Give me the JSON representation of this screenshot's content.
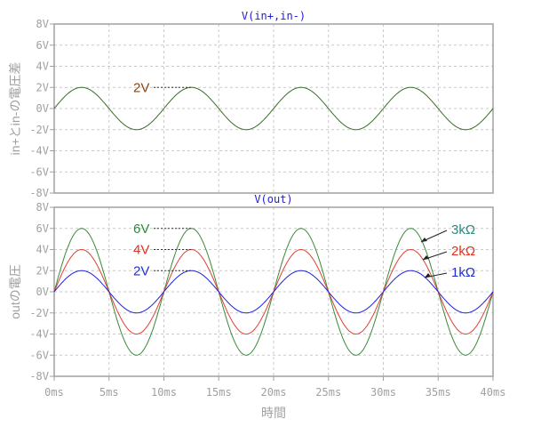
{
  "chart_data": [
    {
      "type": "line",
      "title": "V(in+,in-)",
      "ylabel": "in+とin-の電圧差",
      "xlabel": "",
      "xlim": [
        0,
        40
      ],
      "ylim": [
        -8,
        8
      ],
      "yticks": [
        "8V",
        "6V",
        "4V",
        "2V",
        "0V",
        "-2V",
        "-4V",
        "-6V",
        "-8V"
      ],
      "grid": true,
      "series": [
        {
          "name": "V(in+,in-)",
          "amplitude": 2,
          "period_ms": 10,
          "color": "#3a6e2a"
        }
      ],
      "annotations": [
        {
          "text": "2V",
          "color": "#8b4513",
          "at_ms": 12.5,
          "value": 2
        }
      ]
    },
    {
      "type": "line",
      "title": "V(out)",
      "ylabel": "outの電圧",
      "xlabel": "時間",
      "xlim": [
        0,
        40
      ],
      "ylim": [
        -8,
        8
      ],
      "yticks": [
        "8V",
        "6V",
        "4V",
        "2V",
        "0V",
        "-2V",
        "-4V",
        "-6V",
        "-8V"
      ],
      "xticks": [
        "0ms",
        "5ms",
        "10ms",
        "15ms",
        "20ms",
        "25ms",
        "30ms",
        "35ms",
        "40ms"
      ],
      "grid": true,
      "series": [
        {
          "name": "3kΩ",
          "amplitude": 6,
          "period_ms": 10,
          "color": "#3a8a3a",
          "label_color": "#2a8a80"
        },
        {
          "name": "2kΩ",
          "amplitude": 4,
          "period_ms": 10,
          "color": "#e04030",
          "label_color": "#e03020"
        },
        {
          "name": "1kΩ",
          "amplitude": 2,
          "period_ms": 10,
          "color": "#2020e0",
          "label_color": "#2030d0"
        }
      ],
      "annotations": [
        {
          "text": "6V",
          "color": "#2a8a3a",
          "at_ms": 12.5,
          "value": 6
        },
        {
          "text": "4V",
          "color": "#e03020",
          "at_ms": 12.5,
          "value": 4
        },
        {
          "text": "2V",
          "color": "#2030d0",
          "at_ms": 12.5,
          "value": 2
        }
      ]
    }
  ]
}
